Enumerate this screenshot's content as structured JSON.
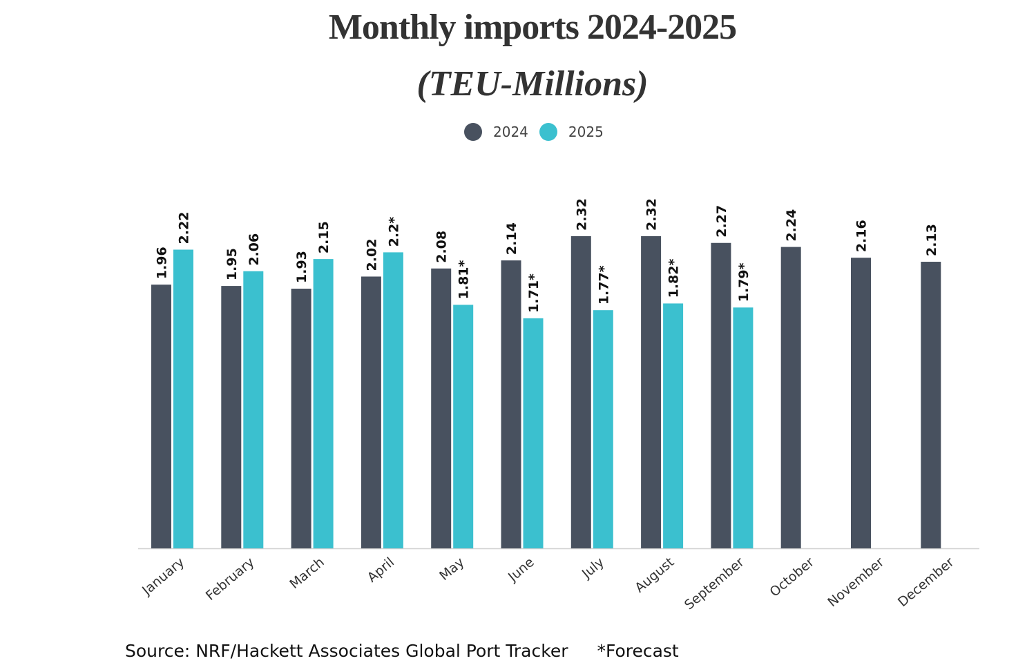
{
  "chart_data": {
    "type": "bar",
    "title": "Monthly imports 2024-2025",
    "subtitle": "(TEU-Millions)",
    "legend_placement": "top-center",
    "categories": [
      "January",
      "February",
      "March",
      "April",
      "May",
      "June",
      "July",
      "August",
      "September",
      "October",
      "November",
      "December"
    ],
    "series": [
      {
        "name": "2024",
        "color": "#48515f",
        "values": [
          1.96,
          1.95,
          1.93,
          2.02,
          2.08,
          2.14,
          2.32,
          2.32,
          2.27,
          2.24,
          2.16,
          2.13
        ],
        "labels": [
          "1.96",
          "1.95",
          "1.93",
          "2.02",
          "2.08",
          "2.14",
          "2.32",
          "2.32",
          "2.27",
          "2.24",
          "2.16",
          "2.13"
        ]
      },
      {
        "name": "2025",
        "color": "#3bc0cf",
        "values": [
          2.22,
          2.06,
          2.15,
          2.2,
          1.81,
          1.71,
          1.77,
          1.82,
          1.79,
          null,
          null,
          null
        ],
        "labels": [
          "2.22",
          "2.06",
          "2.15",
          "2.2*",
          "1.81*",
          "1.71*",
          "1.77*",
          "1.82*",
          "1.79*",
          null,
          null,
          null
        ]
      }
    ],
    "xlabel": "",
    "ylabel": "",
    "ylim": [
      0,
      2.32
    ],
    "grid": false
  },
  "footer": {
    "source": "Source: NRF/Hackett Associates Global Port Tracker",
    "note": "*Forecast"
  }
}
